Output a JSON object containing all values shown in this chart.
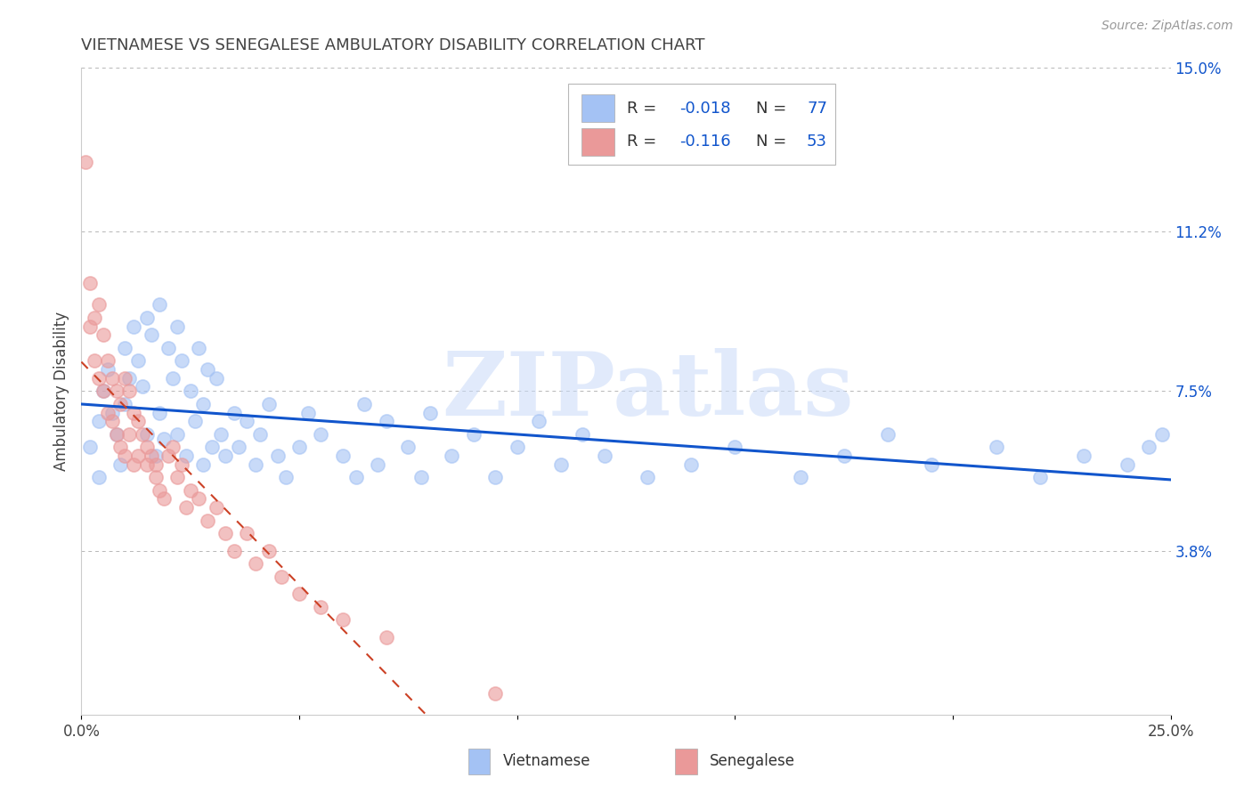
{
  "title": "VIETNAMESE VS SENEGALESE AMBULATORY DISABILITY CORRELATION CHART",
  "source": "Source: ZipAtlas.com",
  "ylabel": "Ambulatory Disability",
  "xlim": [
    0.0,
    0.25
  ],
  "ylim": [
    0.0,
    0.15
  ],
  "xtick_positions": [
    0.0,
    0.05,
    0.1,
    0.15,
    0.2,
    0.25
  ],
  "xtick_labels": [
    "0.0%",
    "",
    "",
    "",
    "",
    "25.0%"
  ],
  "ytick_positions": [
    0.038,
    0.075,
    0.112,
    0.15
  ],
  "ytick_labels": [
    "3.8%",
    "7.5%",
    "11.2%",
    "15.0%"
  ],
  "watermark": "ZIPatlas",
  "blue_color": "#a4c2f4",
  "pink_color": "#ea9999",
  "blue_line_color": "#1155cc",
  "pink_line_color": "#cc4125",
  "grid_color": "#b7b7b7",
  "title_color": "#434343",
  "axis_label_color": "#434343",
  "right_tick_color": "#1155cc",
  "background_color": "#ffffff",
  "source_color": "#999999",
  "viet_x": [
    0.002,
    0.004,
    0.004,
    0.005,
    0.006,
    0.007,
    0.008,
    0.009,
    0.01,
    0.01,
    0.011,
    0.012,
    0.013,
    0.014,
    0.015,
    0.015,
    0.016,
    0.017,
    0.018,
    0.018,
    0.019,
    0.02,
    0.021,
    0.022,
    0.022,
    0.023,
    0.024,
    0.025,
    0.026,
    0.027,
    0.028,
    0.028,
    0.029,
    0.03,
    0.031,
    0.032,
    0.033,
    0.035,
    0.036,
    0.038,
    0.04,
    0.041,
    0.043,
    0.045,
    0.047,
    0.05,
    0.052,
    0.055,
    0.06,
    0.063,
    0.065,
    0.068,
    0.07,
    0.075,
    0.078,
    0.08,
    0.085,
    0.09,
    0.095,
    0.1,
    0.105,
    0.11,
    0.115,
    0.12,
    0.13,
    0.14,
    0.15,
    0.165,
    0.175,
    0.185,
    0.195,
    0.21,
    0.22,
    0.23,
    0.24,
    0.245,
    0.248
  ],
  "viet_y": [
    0.062,
    0.068,
    0.055,
    0.075,
    0.08,
    0.07,
    0.065,
    0.058,
    0.085,
    0.072,
    0.078,
    0.09,
    0.082,
    0.076,
    0.092,
    0.065,
    0.088,
    0.06,
    0.095,
    0.07,
    0.064,
    0.085,
    0.078,
    0.09,
    0.065,
    0.082,
    0.06,
    0.075,
    0.068,
    0.085,
    0.072,
    0.058,
    0.08,
    0.062,
    0.078,
    0.065,
    0.06,
    0.07,
    0.062,
    0.068,
    0.058,
    0.065,
    0.072,
    0.06,
    0.055,
    0.062,
    0.07,
    0.065,
    0.06,
    0.055,
    0.072,
    0.058,
    0.068,
    0.062,
    0.055,
    0.07,
    0.06,
    0.065,
    0.055,
    0.062,
    0.068,
    0.058,
    0.065,
    0.06,
    0.055,
    0.058,
    0.062,
    0.055,
    0.06,
    0.065,
    0.058,
    0.062,
    0.055,
    0.06,
    0.058,
    0.062,
    0.065
  ],
  "sen_x": [
    0.001,
    0.002,
    0.002,
    0.003,
    0.003,
    0.004,
    0.004,
    0.005,
    0.005,
    0.006,
    0.006,
    0.007,
    0.007,
    0.008,
    0.008,
    0.009,
    0.009,
    0.01,
    0.01,
    0.011,
    0.011,
    0.012,
    0.012,
    0.013,
    0.013,
    0.014,
    0.015,
    0.015,
    0.016,
    0.017,
    0.017,
    0.018,
    0.019,
    0.02,
    0.021,
    0.022,
    0.023,
    0.024,
    0.025,
    0.027,
    0.029,
    0.031,
    0.033,
    0.035,
    0.038,
    0.04,
    0.043,
    0.046,
    0.05,
    0.055,
    0.06,
    0.07,
    0.095
  ],
  "sen_y": [
    0.128,
    0.1,
    0.09,
    0.092,
    0.082,
    0.095,
    0.078,
    0.088,
    0.075,
    0.082,
    0.07,
    0.078,
    0.068,
    0.075,
    0.065,
    0.072,
    0.062,
    0.078,
    0.06,
    0.075,
    0.065,
    0.07,
    0.058,
    0.068,
    0.06,
    0.065,
    0.062,
    0.058,
    0.06,
    0.055,
    0.058,
    0.052,
    0.05,
    0.06,
    0.062,
    0.055,
    0.058,
    0.048,
    0.052,
    0.05,
    0.045,
    0.048,
    0.042,
    0.038,
    0.042,
    0.035,
    0.038,
    0.032,
    0.028,
    0.025,
    0.022,
    0.018,
    0.005
  ]
}
